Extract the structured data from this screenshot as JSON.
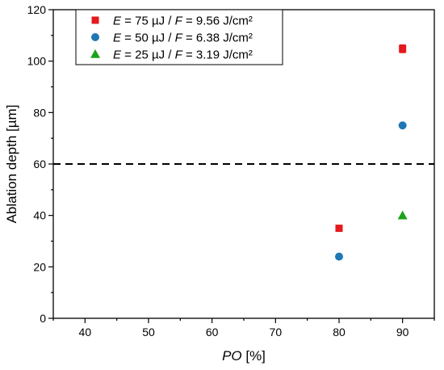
{
  "chart_data": {
    "type": "scatter",
    "xlabel": {
      "italic": "PO",
      "rest": " [%]"
    },
    "ylabel": "Ablation depth [µm]",
    "xlim": [
      35,
      95
    ],
    "ylim": [
      0,
      120
    ],
    "xticks": [
      40,
      50,
      60,
      70,
      80,
      90
    ],
    "yticks": [
      0,
      20,
      40,
      60,
      80,
      100,
      120
    ],
    "reference_line": {
      "y": 60,
      "style": "dashed",
      "color": "#000000"
    },
    "legend_position": "top-left",
    "series": [
      {
        "legend": {
          "e_symbol": "E",
          "e_value": " = 75 µJ / ",
          "f_symbol": "F",
          "f_value": " = 9.56 J/cm²"
        },
        "marker": "square",
        "color": "#e41a1c",
        "points": [
          {
            "x": 80,
            "y": 35
          },
          {
            "x": 90,
            "y": 104.8,
            "err": 1.5
          }
        ]
      },
      {
        "legend": {
          "e_symbol": "E",
          "e_value": " = 50 µJ / ",
          "f_symbol": "F",
          "f_value": " = 6.38 J/cm²"
        },
        "marker": "circle",
        "color": "#1f78b4",
        "points": [
          {
            "x": 80,
            "y": 24
          },
          {
            "x": 90,
            "y": 75
          }
        ]
      },
      {
        "legend": {
          "e_symbol": "E",
          "e_value": " = 25 µJ / ",
          "f_symbol": "F",
          "f_value": " = 3.19 J/cm²"
        },
        "marker": "triangle",
        "color": "#1aa31a",
        "points": [
          {
            "x": 90,
            "y": 40
          }
        ]
      }
    ]
  }
}
